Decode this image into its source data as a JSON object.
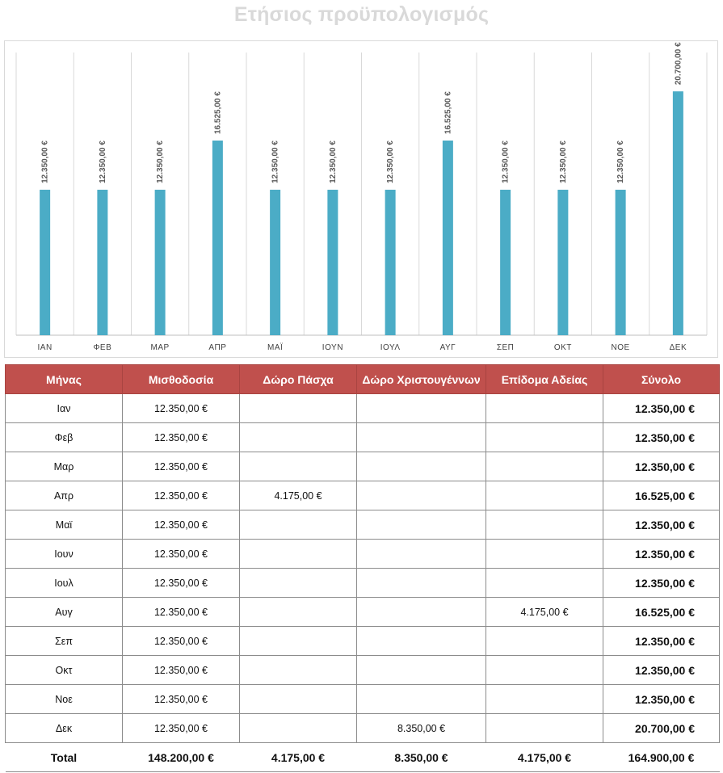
{
  "title": "Ετήσιος προϋπολογισμός",
  "chart_data": {
    "type": "bar",
    "categories": [
      "ΙΑΝ",
      "ΦΕΒ",
      "ΜΑΡ",
      "ΑΠΡ",
      "ΜΑΪ",
      "ΙΟΥΝ",
      "ΙΟΥΛ",
      "ΑΥΓ",
      "ΣΕΠ",
      "ΟΚΤ",
      "ΝΟΕ",
      "ΔΕΚ"
    ],
    "values": [
      12350,
      12350,
      12350,
      16525,
      12350,
      12350,
      12350,
      16525,
      12350,
      12350,
      12350,
      20700
    ],
    "data_labels": [
      "12.350,00 €",
      "12.350,00 €",
      "12.350,00 €",
      "16.525,00 €",
      "12.350,00 €",
      "12.350,00 €",
      "12.350,00 €",
      "16.525,00 €",
      "12.350,00 €",
      "12.350,00 €",
      "12.350,00 €",
      "20.700,00 €"
    ],
    "ylim": [
      0,
      24000
    ],
    "grid": "vertical",
    "bar_color": "#4bacc6",
    "title": "",
    "xlabel": "",
    "ylabel": ""
  },
  "table": {
    "header_color": "#c0504d",
    "columns": [
      "Μήνας",
      "Μισθοδοσία",
      "Δώρο Πάσχα",
      "Δώρο Χριστουγέννων",
      "Επίδομα Αδείας",
      "Σύνολο"
    ],
    "rows": [
      [
        "Ιαν",
        "12.350,00 €",
        "",
        "",
        "",
        "12.350,00 €"
      ],
      [
        "Φεβ",
        "12.350,00 €",
        "",
        "",
        "",
        "12.350,00 €"
      ],
      [
        "Μαρ",
        "12.350,00 €",
        "",
        "",
        "",
        "12.350,00 €"
      ],
      [
        "Απρ",
        "12.350,00 €",
        "4.175,00 €",
        "",
        "",
        "16.525,00 €"
      ],
      [
        "Μαϊ",
        "12.350,00 €",
        "",
        "",
        "",
        "12.350,00 €"
      ],
      [
        "Ιουν",
        "12.350,00 €",
        "",
        "",
        "",
        "12.350,00 €"
      ],
      [
        "Ιουλ",
        "12.350,00 €",
        "",
        "",
        "",
        "12.350,00 €"
      ],
      [
        "Αυγ",
        "12.350,00 €",
        "",
        "",
        "4.175,00 €",
        "16.525,00 €"
      ],
      [
        "Σεπ",
        "12.350,00 €",
        "",
        "",
        "",
        "12.350,00 €"
      ],
      [
        "Οκτ",
        "12.350,00 €",
        "",
        "",
        "",
        "12.350,00 €"
      ],
      [
        "Νοε",
        "12.350,00 €",
        "",
        "",
        "",
        "12.350,00 €"
      ],
      [
        "Δεκ",
        "12.350,00 €",
        "",
        "8.350,00 €",
        "",
        "20.700,00 €"
      ]
    ],
    "total_row": [
      "Total",
      "148.200,00 €",
      "4.175,00 €",
      "8.350,00 €",
      "4.175,00 €",
      "164.900,00 €"
    ]
  }
}
